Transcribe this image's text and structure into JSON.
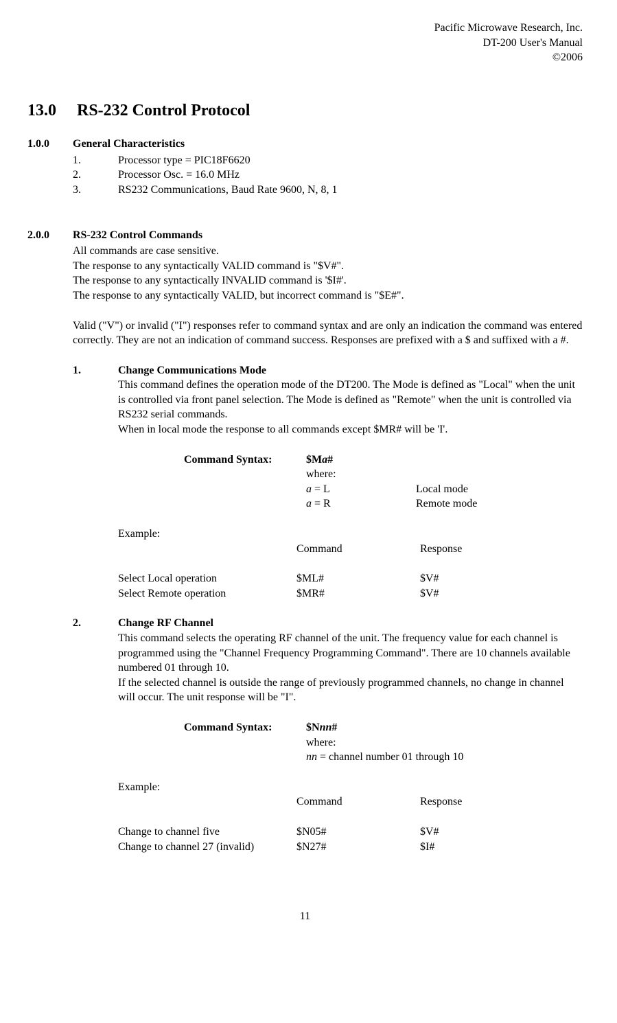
{
  "header": {
    "company": "Pacific Microwave Research, Inc.",
    "product": "DT-200 User's Manual",
    "copyright": "©2006"
  },
  "title": {
    "num": "13.0",
    "text": "RS-232 Control Protocol"
  },
  "sec1": {
    "num": "1.0.0",
    "title": "General Characteristics",
    "items": {
      "n1": "1.",
      "t1": "Processor type = PIC18F6620",
      "n2": "2.",
      "t2": "Processor Osc. = 16.0 MHz",
      "n3": "3.",
      "t3": "RS232 Communications, Baud Rate 9600, N, 8, 1"
    }
  },
  "sec2": {
    "num": "2.0.0",
    "title": "RS-232 Control Commands",
    "p1": "All commands are case sensitive.",
    "p2": "The response to any syntactically VALID command is \"$V#\".",
    "p3": "The response to any syntactically INVALID command is '$I#'.",
    "p4": "The response to any syntactically VALID, but incorrect command is \"$E#\".",
    "p5": "Valid (\"V\") or invalid (\"I\") responses refer to command syntax and are only an indication the command was entered correctly. They are not an indication of command success.  Responses are prefixed with a $ and suffixed with a #."
  },
  "cmd1": {
    "num": "1.",
    "title": "Change Communications Mode",
    "desc1": "This command defines the operation mode of the DT200.  The Mode is defined as \"Local\" when the unit is controlled via front panel selection.  The Mode is defined as \"Remote\" when the unit is controlled via RS232 serial commands.",
    "desc2": "When in local mode the response to all commands except $MR# will be 'I'.",
    "syntax_label": "Command Syntax:",
    "syntax_cmd_pre": "$M",
    "syntax_cmd_var": "a",
    "syntax_cmd_post": "#",
    "syntax_where": "where:",
    "syntax_row1_l": "a",
    "syntax_row1_m": " = L",
    "syntax_row1_r": "Local mode",
    "syntax_row2_l": "a",
    "syntax_row2_m": " = R",
    "syntax_row2_r": "Remote mode",
    "example_label": "Example:",
    "hdr_cmd": "Command",
    "hdr_resp": "Response",
    "r1_desc": "Select Local operation",
    "r1_cmd": "$ML#",
    "r1_resp": "$V#",
    "r2_desc": "Select Remote operation",
    "r2_cmd": "$MR#",
    "r2_resp": "$V#"
  },
  "cmd2": {
    "num": "2.",
    "title": "Change RF Channel",
    "desc1": "This command selects the operating RF channel of the unit.  The frequency value for each channel is programmed using the \"Channel Frequency Programming Command\".  There are 10 channels available numbered 01 through 10.",
    "desc2": "If the selected channel is outside the range of previously programmed channels, no change in channel will occur. The unit response will be \"I\".",
    "syntax_label": "Command Syntax:",
    "syntax_cmd_pre": "$N",
    "syntax_cmd_var": "nn",
    "syntax_cmd_post": "#",
    "syntax_where": "where:",
    "syntax_row_var": "nn",
    "syntax_row_rest": " = channel number 01 through 10",
    "example_label": "Example:",
    "hdr_cmd": "Command",
    "hdr_resp": "Response",
    "r1_desc": "Change to channel five",
    "r1_cmd": "$N05#",
    "r1_resp": "$V#",
    "r2_desc": "Change to channel 27 (invalid)",
    "r2_cmd": "$N27#",
    "r2_resp": "$I#"
  },
  "page_number": "11"
}
